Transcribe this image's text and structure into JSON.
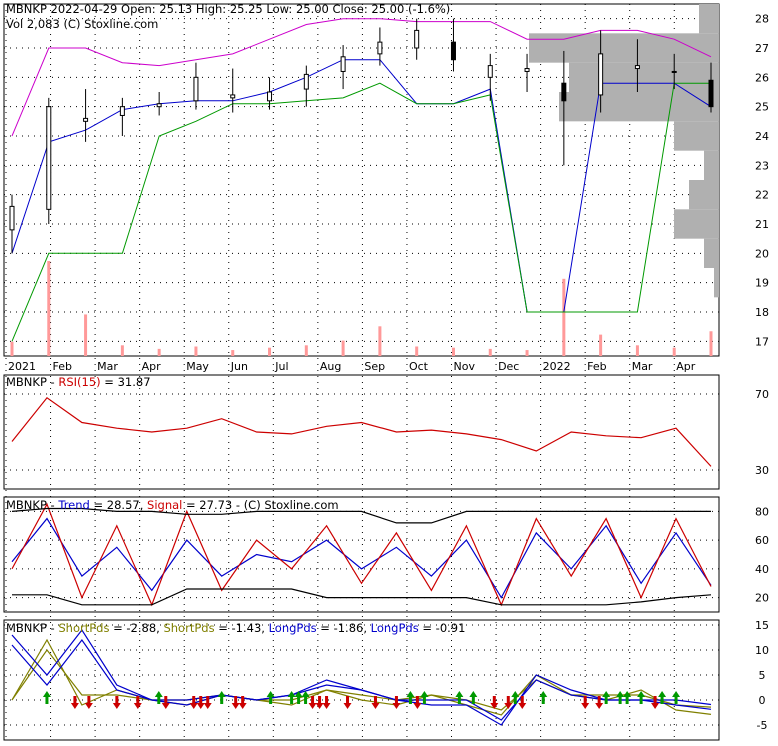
{
  "header": {
    "line1": "MBNKP  2022-04-29 Open: 25.13  High: 25.25  Low: 25.00  Close: 25.00 (-1.6%)",
    "line2": "Vol 2,083   (C) Stoxline.com"
  },
  "panels": {
    "rsi": {
      "prefix": "MBNKP - ",
      "label": "RSI(15)",
      "value_text": " = 31.87",
      "color": "#cc0000"
    },
    "trend": {
      "prefix": "MBNKP  - ",
      "trend_label": "Trend",
      "trend_value": " = 28.57, ",
      "signal_label": "Signal",
      "signal_value": " = 27.73",
      "credit": "  - (C) Stoxline.com",
      "trend_color": "#0000cc",
      "signal_color": "#cc0000"
    },
    "pds": {
      "prefix": "MBNKP  - ",
      "s1_label": "ShortPds",
      "s1_value": " = -2.88, ",
      "s2_label": "ShortPds",
      "s2_value": " = -1.43, ",
      "l1_label": "LongPds",
      "l1_value": " = -1.86, ",
      "l2_label": "LongPds",
      "l2_value": " = -0.91",
      "short_color": "#808000",
      "long_color": "#0000cc"
    }
  },
  "chart_data": [
    {
      "type": "candlestick",
      "ylim": [
        16.5,
        28.5
      ],
      "y_ticks": [
        17,
        18,
        19,
        20,
        21,
        22,
        23,
        24,
        25,
        26,
        27,
        28
      ],
      "x_ticks": [
        "2021",
        "Feb",
        "Mar",
        "Apr",
        "May",
        "Jun",
        "Jul",
        "Aug",
        "Sep",
        "Oct",
        "Nov",
        "Dec",
        "2022",
        "Feb",
        "Mar",
        "Apr"
      ],
      "series": [
        {
          "role": "price",
          "ohlc_points": [
            [
              20.8,
              22.0,
              20.0,
              21.6
            ],
            [
              21.5,
              25.3,
              21.0,
              25.0
            ],
            [
              24.5,
              25.6,
              23.8,
              24.6
            ],
            [
              24.7,
              25.3,
              24.0,
              25.0
            ],
            [
              25.0,
              25.5,
              24.7,
              25.1
            ],
            [
              25.2,
              26.5,
              24.9,
              26.0
            ],
            [
              25.3,
              26.3,
              24.8,
              25.4
            ],
            [
              25.2,
              26.0,
              24.9,
              25.5
            ],
            [
              25.6,
              26.4,
              25.0,
              26.1
            ],
            [
              26.2,
              27.1,
              25.6,
              26.7
            ],
            [
              26.8,
              27.7,
              26.4,
              27.2
            ],
            [
              27.0,
              28.0,
              26.6,
              27.6
            ],
            [
              27.2,
              28.0,
              26.2,
              26.6
            ],
            [
              26.0,
              26.8,
              25.2,
              26.4
            ],
            [
              26.2,
              26.8,
              25.5,
              26.3
            ],
            [
              25.8,
              26.9,
              23.0,
              25.2
            ],
            [
              25.4,
              27.6,
              24.8,
              26.8
            ],
            [
              26.3,
              27.3,
              25.5,
              26.4
            ],
            [
              26.2,
              26.8,
              25.6,
              26.2
            ],
            [
              25.9,
              26.5,
              24.8,
              25.0
            ]
          ]
        },
        {
          "role": "upper_channel",
          "color": "#cc00cc",
          "values": [
            24.0,
            27.0,
            27.0,
            26.5,
            26.4,
            26.6,
            26.8,
            27.3,
            27.8,
            28.0,
            28.0,
            27.9,
            27.9,
            27.9,
            27.3,
            27.3,
            27.6,
            27.6,
            27.3,
            26.7
          ]
        },
        {
          "role": "mid_channel",
          "color": "#0000cc",
          "values": [
            20.0,
            23.8,
            24.2,
            24.9,
            25.1,
            25.2,
            25.2,
            25.5,
            26.0,
            26.6,
            26.6,
            25.1,
            25.1,
            25.6,
            18.0,
            18.0,
            25.8,
            25.8,
            25.8,
            25.0
          ]
        },
        {
          "role": "lower_channel",
          "color": "#009900",
          "values": [
            17.0,
            20.0,
            20.0,
            20.0,
            24.0,
            24.5,
            25.1,
            25.1,
            25.2,
            25.3,
            25.8,
            25.1,
            25.1,
            25.4,
            18.0,
            18.0,
            18.0,
            18.0,
            25.8,
            25.8
          ]
        },
        {
          "role": "volume",
          "color": "#ff9999",
          "values": [
            1200,
            8000,
            3500,
            900,
            600,
            800,
            500,
            700,
            900,
            1300,
            2500,
            800,
            700,
            600,
            500,
            6500,
            1800,
            900,
            700,
            2083
          ]
        },
        {
          "role": "volume_by_price",
          "color": "#b0b0b0",
          "levels": [
            17,
            18,
            19,
            20,
            21,
            22,
            23,
            24,
            25,
            26,
            27,
            28
          ],
          "values": [
            0,
            0,
            5,
            15,
            45,
            30,
            15,
            45,
            160,
            150,
            190,
            20
          ]
        }
      ]
    },
    {
      "type": "line",
      "ylim": [
        20,
        80
      ],
      "y_ticks": [
        30,
        70
      ],
      "series": [
        {
          "name": "RSI(15)",
          "color": "#cc0000",
          "values": [
            45,
            68,
            55,
            52,
            50,
            52,
            57,
            50,
            49,
            53,
            55,
            50,
            51,
            49,
            46,
            40,
            50,
            48,
            47,
            52,
            31.87
          ]
        }
      ]
    },
    {
      "type": "line",
      "ylim": [
        10,
        90
      ],
      "y_ticks": [
        20,
        40,
        60,
        80
      ],
      "series": [
        {
          "name": "Trend",
          "color": "#0000cc",
          "values": [
            45,
            75,
            35,
            55,
            25,
            60,
            35,
            50,
            45,
            60,
            40,
            55,
            35,
            60,
            20,
            65,
            40,
            70,
            30,
            65,
            28.57
          ]
        },
        {
          "name": "Signal",
          "color": "#cc0000",
          "values": [
            40,
            85,
            20,
            70,
            15,
            80,
            25,
            60,
            40,
            70,
            30,
            65,
            25,
            70,
            15,
            75,
            35,
            75,
            20,
            75,
            27.73
          ]
        },
        {
          "role": "upper_band",
          "color": "#000000",
          "values": [
            80,
            82,
            82,
            80,
            80,
            78,
            78,
            80,
            80,
            80,
            80,
            72,
            72,
            80,
            80,
            80,
            80,
            80,
            80,
            80,
            80
          ]
        },
        {
          "role": "lower_band",
          "color": "#000000",
          "values": [
            22,
            22,
            15,
            15,
            15,
            26,
            26,
            26,
            26,
            20,
            20,
            20,
            20,
            20,
            15,
            15,
            15,
            15,
            17,
            20,
            22
          ]
        }
      ]
    },
    {
      "type": "line",
      "ylim": [
        -8,
        16
      ],
      "y_ticks": [
        -5,
        0,
        5,
        10,
        15
      ],
      "series": [
        {
          "name": "ShortPds",
          "color": "#808000",
          "values": [
            0,
            12,
            -1,
            2,
            0,
            -1,
            1,
            0,
            -1,
            2,
            0,
            -1,
            1,
            -1,
            -3,
            5,
            1,
            0,
            2,
            -2,
            -2.88
          ]
        },
        {
          "name": "ShortPds",
          "color": "#808000",
          "values": [
            0,
            10,
            1,
            1,
            0,
            0,
            1,
            0,
            0,
            2,
            1,
            0,
            1,
            0,
            -2,
            4,
            1,
            1,
            1,
            -1,
            -1.43
          ]
        },
        {
          "name": "LongPds",
          "color": "#0000cc",
          "values": [
            13,
            5,
            14,
            3,
            0,
            -1,
            1,
            0,
            1,
            3,
            2,
            0,
            -1,
            -1,
            -5,
            5,
            2,
            0,
            0,
            -1,
            -1.86
          ]
        },
        {
          "name": "LongPds",
          "color": "#0000cc",
          "values": [
            11,
            3,
            12,
            2,
            0,
            0,
            1,
            0,
            1,
            4,
            2,
            0,
            0,
            0,
            -4,
            4,
            1,
            0,
            0,
            0,
            -0.91
          ]
        },
        {
          "role": "buy_signals",
          "color": "#009900",
          "positions": [
            0.05,
            0.21,
            0.3,
            0.37,
            0.4,
            0.41,
            0.42,
            0.57,
            0.59,
            0.64,
            0.66,
            0.72,
            0.76,
            0.85,
            0.87,
            0.88,
            0.9,
            0.93,
            0.95
          ]
        },
        {
          "role": "sell_signals",
          "color": "#cc0000",
          "positions": [
            0.09,
            0.11,
            0.15,
            0.18,
            0.22,
            0.26,
            0.27,
            0.28,
            0.32,
            0.33,
            0.43,
            0.44,
            0.45,
            0.48,
            0.52,
            0.55,
            0.58,
            0.69,
            0.71,
            0.73,
            0.82,
            0.84,
            0.92
          ]
        }
      ]
    }
  ]
}
